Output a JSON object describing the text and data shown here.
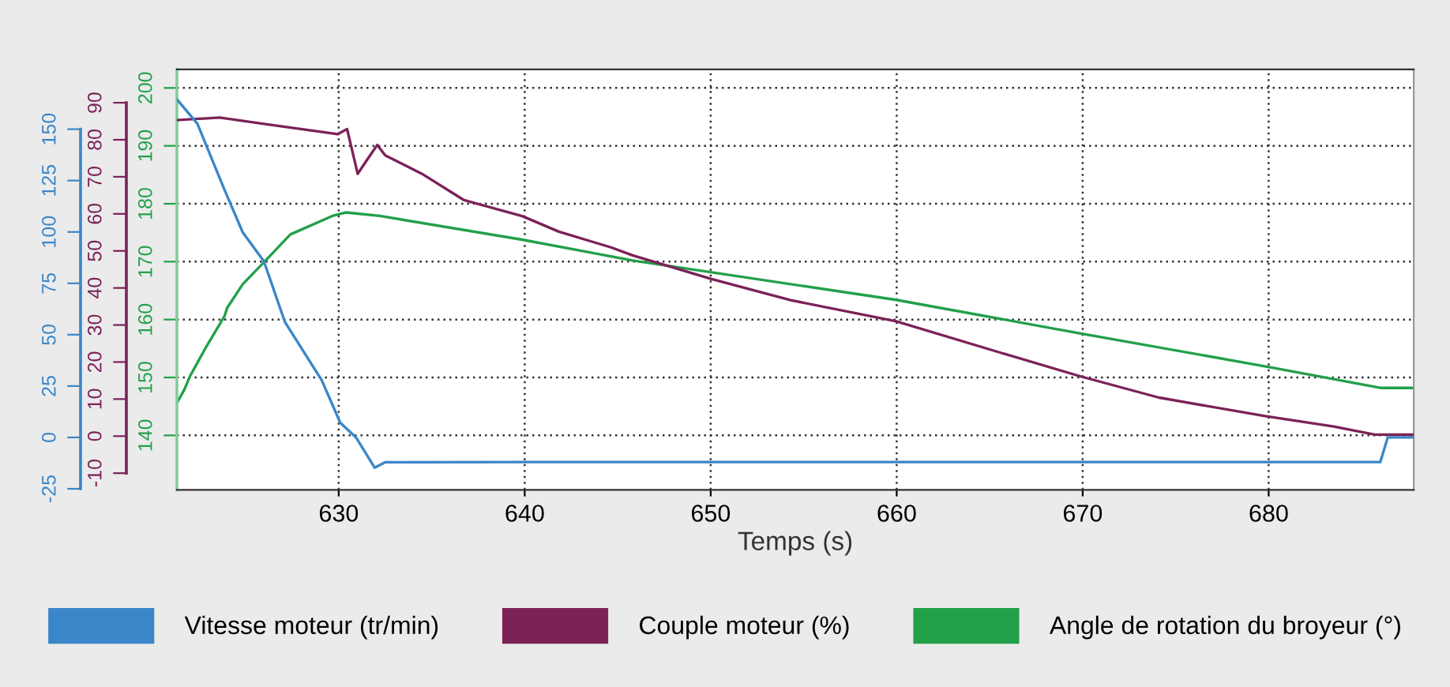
{
  "chart_data": {
    "type": "line",
    "xlabel": "Temps (s)",
    "xlim": [
      621.3,
      687.8
    ],
    "xticks": [
      630,
      640,
      650,
      660,
      670,
      680
    ],
    "ylim": [
      130.6,
      203.2
    ],
    "yticks": [
      140,
      150,
      160,
      170,
      180,
      190,
      200
    ],
    "y2lim": [
      -14.5,
      99.0
    ],
    "y2ticks": [
      -10,
      0,
      10,
      20,
      30,
      40,
      50,
      60,
      70,
      80,
      90
    ],
    "y3lim": [
      -25.5,
      179.1
    ],
    "y3ticks": [
      -25,
      0,
      25,
      50,
      75,
      100,
      125,
      150
    ],
    "grid": true,
    "legend": "bottom",
    "line_style": "solid",
    "marker": "none",
    "series": [
      {
        "name": "Vitesse moteur (tr/min)",
        "color": "#3a86c8",
        "axis": "y3",
        "x": [
          621.33,
          622.4,
          623.86,
          624.84,
          625.98,
          627.11,
          629.09,
          630.08,
          630.93,
          631.93,
          632.49,
          640,
          650,
          660,
          670,
          680,
          686.0,
          686.4,
          687.8
        ],
        "values": [
          164.2,
          152.7,
          120.5,
          99.8,
          85.7,
          56.1,
          27.8,
          7.2,
          0,
          -14.7,
          -12.1,
          -12,
          -12,
          -12,
          -12,
          -12,
          -12,
          0,
          0
        ]
      },
      {
        "name": "Couple moteur (%)",
        "color": "#7b2257",
        "axis": "y2",
        "x": [
          621.3,
          623.6,
          625.98,
          629.94,
          630.45,
          631.02,
          631.5,
          632.07,
          632.5,
          634.48,
          636.74,
          639.86,
          641.84,
          644.67,
          645.8,
          650.05,
          654.3,
          659.97,
          665.6,
          669.9,
          674.1,
          679.8,
          683.5,
          685.7,
          687.8
        ],
        "values": [
          85.3,
          86.0,
          84.3,
          81.5,
          82.9,
          70.8,
          74.4,
          78.6,
          75.8,
          70.8,
          63.7,
          59.4,
          55.2,
          50.9,
          48.8,
          42.4,
          36.7,
          31.0,
          22.5,
          16.1,
          10.4,
          5.4,
          2.6,
          0.4,
          0.4
        ]
      },
      {
        "name": "Angle de rotation du broyeur (°)",
        "color": "#22a04a",
        "axis": "y",
        "x": [
          621.3,
          621.7,
          622.0,
          622.86,
          623.86,
          624.0,
          624.84,
          625.98,
          627.4,
          629.66,
          630.37,
          632.2,
          639.86,
          645.8,
          659.97,
          669.9,
          680.2,
          686.0,
          687.8
        ],
        "values": [
          145.6,
          147.9,
          150.2,
          155.2,
          160.6,
          162.0,
          166.1,
          169.9,
          174.7,
          177.9,
          178.5,
          177.9,
          173.8,
          170.2,
          163.4,
          157.6,
          151.7,
          148.2,
          148.2
        ]
      }
    ]
  }
}
